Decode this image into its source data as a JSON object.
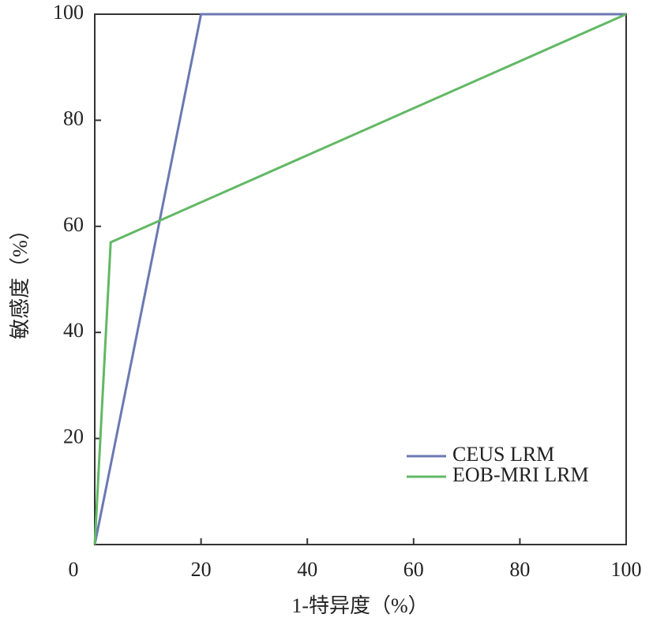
{
  "chart_data": {
    "type": "line",
    "x_label": "1-特异度（%）",
    "y_label": "敏感度（%）",
    "series": [
      {
        "name": "CEUS LRM",
        "color": "#6b78b2",
        "x": [
          0,
          20,
          100
        ],
        "values": [
          0,
          100,
          100
        ]
      },
      {
        "name": "EOB-MRI LRM",
        "color": "#62b865",
        "x": [
          0,
          3,
          100
        ],
        "values": [
          0,
          57,
          100
        ]
      }
    ],
    "xlim": [
      0,
      100
    ],
    "ylim": [
      0,
      100
    ],
    "xticks": [
      0,
      20,
      40,
      60,
      80,
      100
    ],
    "yticks": [
      20,
      40,
      60,
      80,
      100
    ],
    "legend": "lower right"
  }
}
